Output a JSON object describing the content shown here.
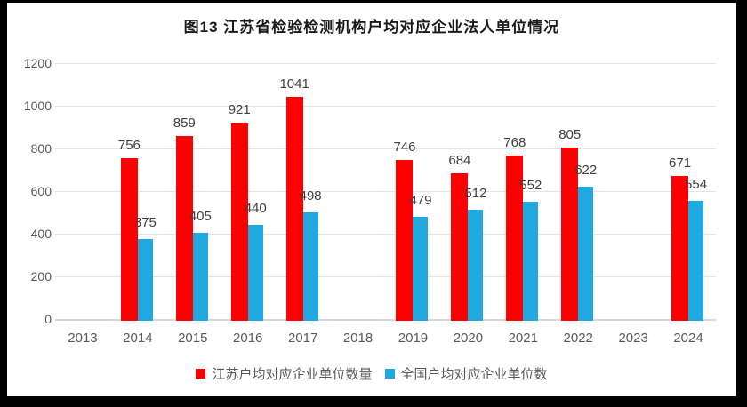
{
  "title": "图13  江苏省检验检测机构户均对应企业法人单位情况",
  "colors": {
    "jiangsu_red": "#fe0000",
    "national_blue": "#20a8e0",
    "gridline": "#e3e3e3",
    "axis_line": "#d9d9d9",
    "tick_label": "#595959",
    "data_label": "#3f3f3f",
    "title_text": "#1a1a1a",
    "frame": "#000000",
    "background": "#ffffff"
  },
  "chart_data": {
    "type": "bar",
    "title": "图13  江苏省检验检测机构户均对应企业法人单位情况",
    "categories": [
      "2013",
      "2014",
      "2015",
      "2016",
      "2017",
      "2018",
      "2019",
      "2020",
      "2021",
      "2022",
      "2023",
      "2024"
    ],
    "series": [
      {
        "name": "江苏户均对应企业单位数量",
        "color_key": "jiangsu_red",
        "values": [
          null,
          756,
          859,
          921,
          1041,
          null,
          746,
          684,
          768,
          805,
          null,
          671
        ]
      },
      {
        "name": "全国户均对应企业单位数",
        "color_key": "national_blue",
        "values": [
          null,
          375,
          405,
          440,
          498,
          null,
          479,
          512,
          552,
          622,
          null,
          554
        ]
      }
    ],
    "ylim": [
      0,
      1200
    ],
    "yticks": [
      0,
      200,
      400,
      600,
      800,
      1000,
      1200
    ],
    "grid": true,
    "legend_position": "bottom",
    "data_labels": "outside-end",
    "xlabel": "",
    "ylabel": ""
  }
}
